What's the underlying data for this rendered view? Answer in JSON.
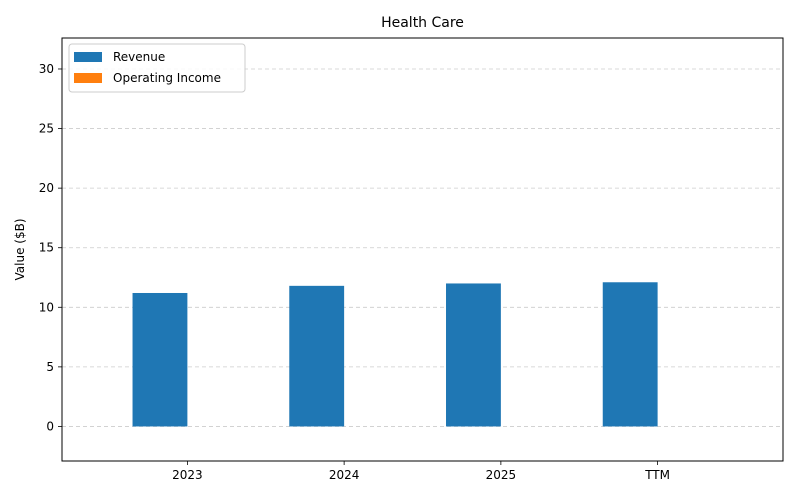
{
  "chart_data": {
    "type": "bar",
    "title": "Health Care",
    "xlabel": "",
    "ylabel": "Value ($B)",
    "categories": [
      "2023",
      "2024",
      "2025",
      "TTM"
    ],
    "series": [
      {
        "name": "Revenue",
        "values": [
          11.2,
          11.8,
          12.0,
          12.1
        ],
        "color": "#1f77b4"
      },
      {
        "name": "Operating Income",
        "values": [
          0.0,
          0.0,
          0.0,
          0.0
        ],
        "color": "#ff7f0e"
      }
    ],
    "ylim": [
      -2.9,
      32.6
    ],
    "yticks": [
      0,
      5,
      10,
      15,
      20,
      25,
      30
    ],
    "grid": true,
    "grid_axis": "y",
    "legend_position": "top-left"
  }
}
